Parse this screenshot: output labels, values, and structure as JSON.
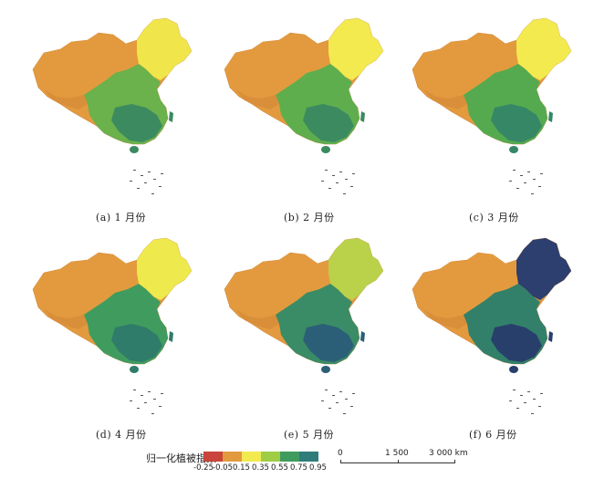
{
  "panels": [
    {
      "caption": "(a) 1 月份",
      "fills": {
        "north": "#e39a3e",
        "ne": "#f0e54a",
        "south": "#6bb14c",
        "se": "#3c8a5f",
        "tibet": "#d98e3a"
      }
    },
    {
      "caption": "(b) 2 月份",
      "fills": {
        "north": "#e39a3e",
        "ne": "#f2ea4f",
        "south": "#5fae4e",
        "se": "#3c8a5f",
        "tibet": "#d98e3a"
      }
    },
    {
      "caption": "(c) 3 月份",
      "fills": {
        "north": "#e39a3e",
        "ne": "#f2ea4f",
        "south": "#55aa4f",
        "se": "#358766",
        "tibet": "#d98e3a"
      }
    },
    {
      "caption": "(d) 4 月份",
      "fills": {
        "north": "#e39a3e",
        "ne": "#eee94c",
        "south": "#3f9c5e",
        "se": "#2f7c6a",
        "tibet": "#d98e3a"
      }
    },
    {
      "caption": "(e) 5 月份",
      "fills": {
        "north": "#e39a3e",
        "ne": "#b9d24a",
        "south": "#3a8c66",
        "se": "#2b5f77",
        "tibet": "#d98e3a"
      }
    },
    {
      "caption": "(f) 6 月份",
      "fills": {
        "north": "#e39a3e",
        "ne": "#2c3f6e",
        "south": "#32806a",
        "se": "#283f6c",
        "tibet": "#d98e3a"
      }
    }
  ],
  "legend": {
    "title": "归一化植被指数",
    "colors": [
      "#c9443a",
      "#e39a3e",
      "#f2ea4f",
      "#9fcd45",
      "#3f9c5e",
      "#2f7c7a",
      "#262a6a"
    ],
    "ticks": [
      "-0.25",
      "-0.05",
      "0.15",
      "0.35",
      "0.55",
      "0.75",
      "0.95"
    ]
  },
  "scalebar": {
    "labels": [
      "0",
      "1 500",
      "3 000 km"
    ]
  }
}
